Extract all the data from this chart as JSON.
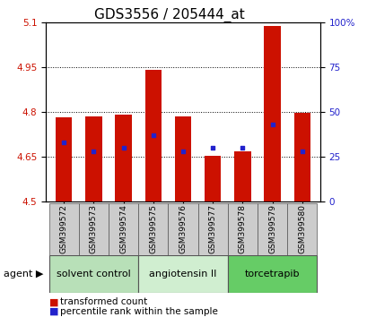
{
  "title": "GDS3556 / 205444_at",
  "samples": [
    "GSM399572",
    "GSM399573",
    "GSM399574",
    "GSM399575",
    "GSM399576",
    "GSM399577",
    "GSM399578",
    "GSM399579",
    "GSM399580"
  ],
  "bar_tops": [
    4.78,
    4.785,
    4.79,
    4.94,
    4.785,
    4.652,
    4.667,
    5.086,
    4.795
  ],
  "bar_base": 4.5,
  "blue_pct": [
    33,
    28,
    30,
    37,
    28,
    30,
    30,
    43,
    28
  ],
  "ylim": [
    4.5,
    5.1
  ],
  "yticks_left": [
    4.5,
    4.65,
    4.8,
    4.95,
    5.1
  ],
  "yticks_right": [
    0,
    25,
    50,
    75,
    100
  ],
  "bar_color": "#cc1100",
  "blue_color": "#2222cc",
  "groups": [
    {
      "label": "solvent control",
      "start": 0,
      "end": 3,
      "color": "#b8e0b8"
    },
    {
      "label": "angiotensin II",
      "start": 3,
      "end": 6,
      "color": "#d0eed0"
    },
    {
      "label": "torcetrapib",
      "start": 6,
      "end": 9,
      "color": "#66cc66"
    }
  ],
  "agent_label": "agent",
  "legend_red": "transformed count",
  "legend_blue": "percentile rank within the sample",
  "bar_width": 0.55,
  "title_fontsize": 11,
  "tick_fontsize": 7.5,
  "sample_fontsize": 6.5,
  "group_fontsize": 8,
  "legend_fontsize": 7.5
}
